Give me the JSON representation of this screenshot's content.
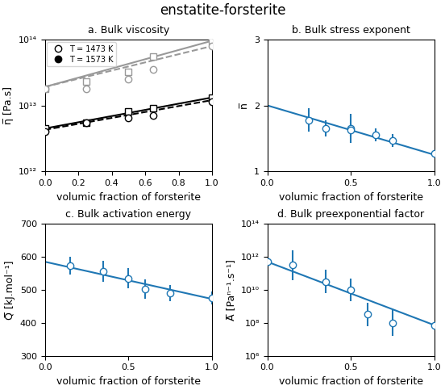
{
  "title": "enstatite-forsterite",
  "chart_data": [
    {
      "type": "line",
      "title": "a. Bulk viscosity",
      "x_label": "volumic fraction of forsterite",
      "y_label": "η̅ [Pa.s]",
      "log": "y",
      "xlim": [
        0.0,
        1.0
      ],
      "ylim": [
        1000000000000.0,
        100000000000000.0
      ],
      "xticks": [
        0.0,
        0.2,
        0.4,
        0.6,
        0.8,
        1.0
      ],
      "yticks": [
        {
          "value": 1000000000000.0,
          "label": "10¹²"
        },
        {
          "value": 10000000000000.0,
          "label": "10¹³"
        },
        {
          "value": 100000000000000.0,
          "label": "10¹⁴"
        }
      ],
      "legend": "upper left",
      "series": [
        {
          "type": "line",
          "x": [
            0.0,
            1.0
          ],
          "values": [
            19054607179632.47,
            95499258602143.58
          ],
          "color": "#999999",
          "line_style": "solid"
        },
        {
          "type": "line",
          "x": [
            0.0,
            1.0
          ],
          "values": [
            19054607179632.47,
            79432823472428.16
          ],
          "color": "#999999",
          "line_style": "dashed"
        },
        {
          "type": "scatter",
          "x": [
            0.0,
            0.25,
            0.5,
            0.65,
            1.0
          ],
          "values": [
            18000000000000.0,
            23000000000000.0,
            32000000000000.0,
            55000000000000.0,
            95000000000000.0
          ],
          "color": "#999999",
          "marker": "open square"
        },
        {
          "type": "scatter",
          "x": [
            0.0,
            0.25,
            0.5,
            0.65,
            1.0
          ],
          "values": [
            18000000000000.0,
            18000000000000.0,
            25000000000000.0,
            35000000000000.0,
            80000000000000.0
          ],
          "color": "#999999",
          "marker": "open circle"
        },
        {
          "type": "line",
          "x": [
            0.0,
            1.0
          ],
          "values": [
            4466835921509.632,
            13182567385564.07
          ],
          "color": "black",
          "line_style": "solid"
        },
        {
          "type": "line",
          "x": [
            0.0,
            1.0
          ],
          "values": [
            4265795188015.926,
            12022644346174.13
          ],
          "color": "black",
          "line_style": "dashed"
        },
        {
          "type": "scatter",
          "x": [
            0.0,
            0.25,
            0.5,
            0.65,
            1.0
          ],
          "values": [
            4500000000000.0,
            5500000000000.0,
            8000000000000.0,
            9000000000000.0,
            13000000000000.0
          ],
          "color": "black",
          "marker": "open square"
        },
        {
          "type": "scatter",
          "x": [
            0.0,
            0.25,
            0.5,
            0.65,
            1.0
          ],
          "values": [
            4000000000000.0,
            5500000000000.0,
            6500000000000.0,
            7000000000000.0,
            11500000000000.0
          ],
          "color": "black",
          "marker": "open circle"
        },
        {
          "name": "T = 1473 K",
          "type": "scatter",
          "x": [],
          "values": [],
          "color": "black",
          "marker": "open circle"
        },
        {
          "name": "T = 1573 K",
          "type": "scatter",
          "x": [],
          "values": [],
          "color": "black",
          "marker": "circle"
        }
      ]
    },
    {
      "type": "line",
      "title": "b. Bulk stress exponent",
      "x_label": "volumic fraction of forsterite",
      "y_label": "n̅",
      "xlim": [
        0.0,
        1.0
      ],
      "ylim": [
        1,
        3
      ],
      "xticks": [
        0.0,
        0.5,
        1.0
      ],
      "yticks": [
        1,
        2,
        3
      ],
      "series": [
        {
          "type": "line",
          "x": [
            0.0,
            1.0
          ],
          "values": [
            2.0,
            1.25
          ],
          "line_style": "solid"
        },
        {
          "type": "scatter",
          "x": [
            0.25,
            0.35,
            0.5,
            0.5,
            0.65,
            0.75,
            1.0
          ],
          "values": [
            1.78,
            1.65,
            1.65,
            1.63,
            1.55,
            1.47,
            1.27
          ],
          "yerr": [
            0.18,
            0.12,
            0.22,
            0.1,
            0.1,
            0.1,
            0.05
          ],
          "marker": "open circle"
        }
      ]
    },
    {
      "type": "line",
      "title": "c. Bulk activation energy",
      "x_label": "volumic fraction of forsterite",
      "y_label": "Q̅ [kJ.mol⁻¹]",
      "xlim": [
        0.0,
        1.0
      ],
      "ylim": [
        300,
        700
      ],
      "xticks": [
        0.0,
        0.5,
        1.0
      ],
      "yticks": [
        300,
        400,
        500,
        600,
        700
      ],
      "series": [
        {
          "type": "line",
          "x": [
            0.0,
            1.0
          ],
          "values": [
            585,
            472
          ],
          "line_style": "solid"
        },
        {
          "type": "scatter",
          "x": [
            0.15,
            0.35,
            0.5,
            0.6,
            0.75,
            1.0
          ],
          "values": [
            573,
            556,
            535,
            502,
            490,
            475
          ],
          "yerr": [
            28,
            32,
            30,
            30,
            25,
            20
          ],
          "marker": "open circle"
        }
      ]
    },
    {
      "type": "line",
      "title": "d. Bulk preexponential factor",
      "x_label": "volumic fraction of forsterite",
      "y_label": "A̅ [Paⁿ⁻¹.s⁻¹]",
      "log": "y",
      "xlim": [
        0.0,
        1.0
      ],
      "ylim": [
        1000000.0,
        100000000000000.0
      ],
      "xticks": [
        0.0,
        0.5,
        1.0
      ],
      "yticks": [
        {
          "value": 1000000.0,
          "label": "10⁶"
        },
        {
          "value": 100000000.0,
          "label": "10⁸"
        },
        {
          "value": 10000000000.0,
          "label": "10¹⁰"
        },
        {
          "value": 1000000000000.0,
          "label": "10¹²"
        },
        {
          "value": 100000000000000.0,
          "label": "10¹⁴"
        }
      ],
      "series": [
        {
          "type": "line",
          "x": [
            0.0,
            1.0
          ],
          "values": [
            501187233627.2722,
            70794578.43841378
          ],
          "line_style": "solid"
        },
        {
          "type": "scatter",
          "x": [
            0.0,
            0.15,
            0.35,
            0.5,
            0.6,
            0.75,
            1.0
          ],
          "values": [
            501187233627.2722,
            316227766016.83795,
            31622776601.683796,
            10000000000.0,
            316227766.01683795,
            100000000.0,
            70794578.43841378
          ],
          "yerr": [
            [
              0,
              276417049460.0,
              25313203157.0,
              8004737685.0,
              253132031.57,
              84151068.075,
              20675855.075
            ],
            [
              0,
              2195658664900.0,
              126866542650.0,
              40118723363.0,
              1268665426.5,
              530957344.48,
              29205421.562
            ]
          ],
          "marker": "open circle"
        }
      ]
    }
  ]
}
